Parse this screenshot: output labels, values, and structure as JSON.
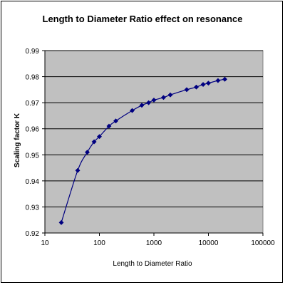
{
  "chart_data": {
    "type": "scatter",
    "title": "Length to Diameter Ratio effect on resonance",
    "xlabel": "Length to Diameter Ratio",
    "ylabel": "Scaling factor K",
    "x_scale": "log",
    "xlim": [
      10,
      100000
    ],
    "ylim": [
      0.92,
      0.99
    ],
    "x_ticks": [
      "10",
      "100",
      "1000",
      "10000",
      "100000"
    ],
    "y_ticks": [
      "0.92",
      "0.93",
      "0.94",
      "0.95",
      "0.96",
      "0.97",
      "0.98",
      "0.99"
    ],
    "grid": "horizontal",
    "plot_background": "#c0c0c0",
    "series": [
      {
        "color": "#000080",
        "marker": "diamond",
        "line": "smooth",
        "points": [
          {
            "x": 20,
            "y": 0.924
          },
          {
            "x": 40,
            "y": 0.944
          },
          {
            "x": 60,
            "y": 0.951
          },
          {
            "x": 80,
            "y": 0.955
          },
          {
            "x": 100,
            "y": 0.957
          },
          {
            "x": 150,
            "y": 0.961
          },
          {
            "x": 200,
            "y": 0.963
          },
          {
            "x": 400,
            "y": 0.967
          },
          {
            "x": 600,
            "y": 0.969
          },
          {
            "x": 800,
            "y": 0.97
          },
          {
            "x": 1000,
            "y": 0.971
          },
          {
            "x": 1500,
            "y": 0.972
          },
          {
            "x": 2000,
            "y": 0.973
          },
          {
            "x": 4000,
            "y": 0.975
          },
          {
            "x": 6000,
            "y": 0.976
          },
          {
            "x": 8000,
            "y": 0.977
          },
          {
            "x": 10000,
            "y": 0.9775
          },
          {
            "x": 15000,
            "y": 0.9785
          },
          {
            "x": 20000,
            "y": 0.979
          }
        ]
      }
    ]
  }
}
